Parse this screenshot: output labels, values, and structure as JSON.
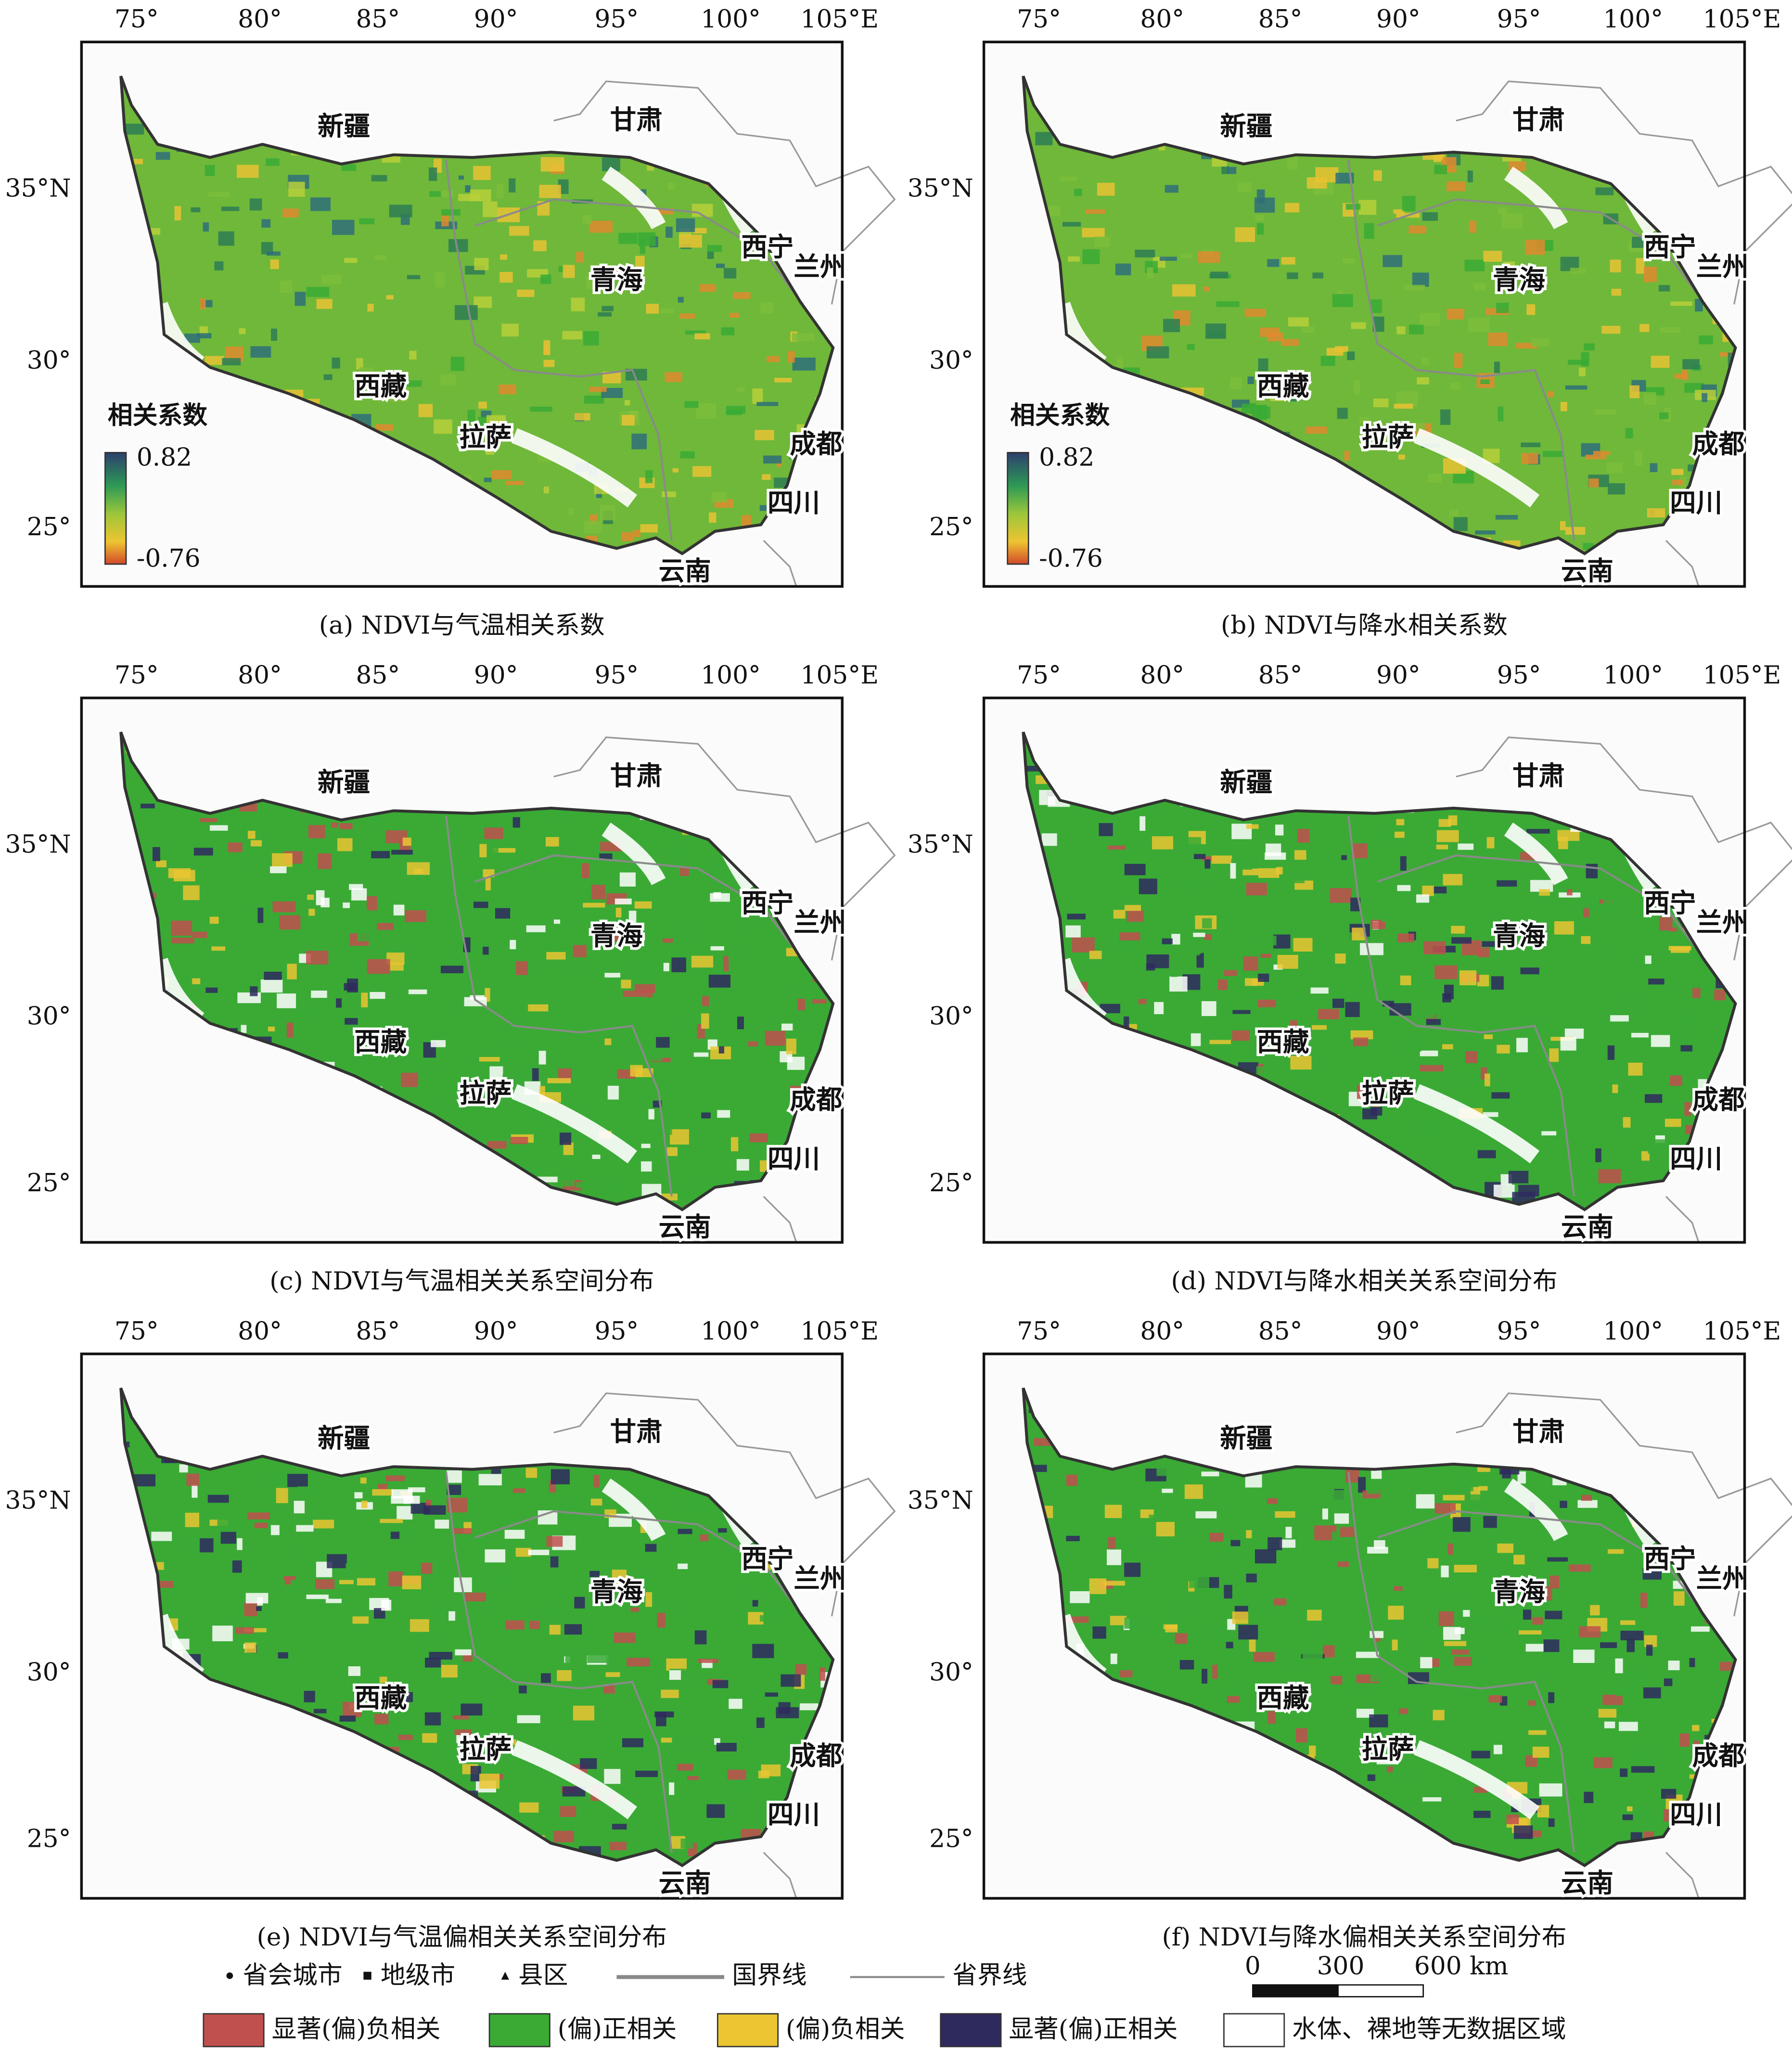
{
  "axes": {
    "lon_labels": [
      "75°",
      "80°",
      "85°",
      "90°",
      "95°",
      "100°",
      "105°E"
    ],
    "lat_labels": [
      "35°N",
      "30°",
      "25°"
    ]
  },
  "places": [
    "新疆",
    "甘肃",
    "西宁",
    "兰州",
    "青海",
    "西藏",
    "拉萨",
    "成都",
    "四川",
    "云南"
  ],
  "colorbar": {
    "title": "相关系数",
    "max_label": "0.82",
    "min_label": "-0.76"
  },
  "panels": [
    {
      "caption": "(a) NDVI与气温相关系数",
      "style": "continuous",
      "colorbar": true
    },
    {
      "caption": "(b) NDVI与降水相关系数",
      "style": "continuous",
      "colorbar": true
    },
    {
      "caption": "(c) NDVI与气温相关关系空间分布",
      "style": "classified",
      "colorbar": false
    },
    {
      "caption": "(d) NDVI与降水相关关系空间分布",
      "style": "classified",
      "colorbar": false
    },
    {
      "caption": "(e) NDVI与气温偏相关关系空间分布",
      "style": "classified",
      "colorbar": false
    },
    {
      "caption": "(f) NDVI与降水偏相关关系空间分布",
      "style": "classified",
      "colorbar": false
    }
  ],
  "legend": {
    "symbols": [
      "省会城市",
      "地级市",
      "县区"
    ],
    "lines": [
      "国界线",
      "省界线"
    ],
    "scale_labels": [
      "0",
      "300",
      "600 km"
    ],
    "classes": [
      {
        "label": "显著(偏)负相关",
        "color": "#c0504d"
      },
      {
        "label": "(偏)正相关",
        "color": "#3aaa35"
      },
      {
        "label": "(偏)负相关",
        "color": "#ebc632"
      },
      {
        "label": "显著(偏)正相关",
        "color": "#2e2a5e"
      },
      {
        "label": "水体、裸地等无数据区域",
        "color": "#ffffff"
      }
    ]
  }
}
